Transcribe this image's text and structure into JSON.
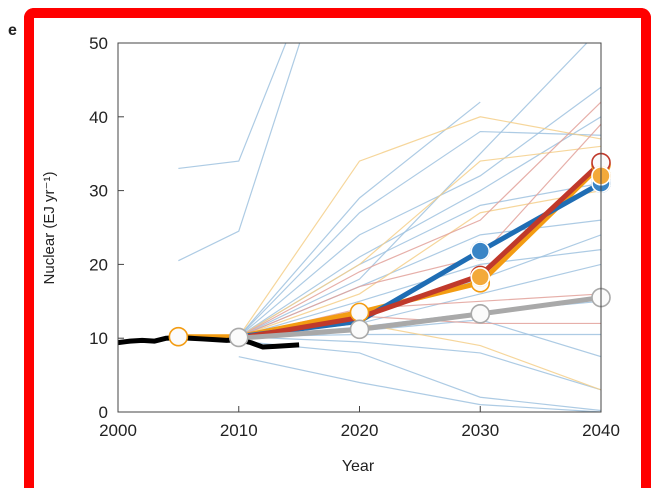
{
  "panel_label": "e",
  "colors": {
    "border": "#ff0000",
    "historical": "#000000",
    "series_blue": "#1f6db4",
    "series_orange": "#f39c12",
    "series_red": "#c0392b",
    "series_gray": "#a9a9a9",
    "thin_blue": "#9fc2df",
    "thin_orange": "#f5cf8a",
    "thin_red": "#e2a19a"
  },
  "chart_data": {
    "type": "line",
    "title": "",
    "xlabel": "Year",
    "ylabel": "Nuclear (EJ yr⁻¹)",
    "xlim": [
      2000,
      2040
    ],
    "ylim": [
      0,
      50
    ],
    "xticks": [
      2000,
      2010,
      2020,
      2030,
      2040
    ],
    "yticks": [
      0,
      10,
      20,
      30,
      40,
      50
    ],
    "grid": false,
    "historical": {
      "x": [
        2000,
        2001,
        2002,
        2003,
        2004,
        2005,
        2006,
        2007,
        2008,
        2009,
        2010,
        2011,
        2012,
        2013,
        2014,
        2015
      ],
      "values": [
        9.4,
        9.6,
        9.7,
        9.6,
        10.0,
        10.1,
        10.0,
        9.9,
        9.8,
        9.7,
        9.8,
        9.4,
        8.8,
        8.9,
        9.0,
        9.1
      ]
    },
    "series": [
      {
        "color_key": "series_orange",
        "x": [
          2005,
          2010,
          2020,
          2030,
          2040
        ],
        "values": [
          10.2,
          10.2,
          13.5,
          17.5,
          33.5
        ],
        "markers": [
          2005,
          2020,
          2030,
          2040
        ]
      },
      {
        "color_key": "series_blue",
        "x": [
          2010,
          2020,
          2030,
          2040
        ],
        "values": [
          10.2,
          12.3,
          21.8,
          31.0
        ],
        "markers": [
          2030,
          2040
        ]
      },
      {
        "color_key": "series_red",
        "x": [
          2010,
          2020,
          2030,
          2040
        ],
        "values": [
          10.0,
          12.8,
          18.5,
          33.8
        ],
        "markers": [
          2030,
          2040
        ]
      },
      {
        "color_key": "series_gray",
        "x": [
          2010,
          2020,
          2030,
          2040
        ],
        "values": [
          10.0,
          11.2,
          13.3,
          15.5
        ],
        "markers": [
          2020,
          2030,
          2040
        ]
      }
    ],
    "markers_extra": [
      {
        "x": 2010,
        "y": 10.1,
        "color_key": "series_gray"
      },
      {
        "x": 2040,
        "y": 32.0,
        "color_key": "series_orange"
      },
      {
        "x": 2030,
        "y": 18.3,
        "color_key": "series_orange"
      }
    ],
    "thin_lines": [
      {
        "color_key": "thin_blue",
        "x": [
          2005,
          2010,
          2020
        ],
        "values": [
          33,
          34,
          75
        ]
      },
      {
        "color_key": "thin_blue",
        "x": [
          2005,
          2010,
          2020
        ],
        "values": [
          20.5,
          24.5,
          75
        ]
      },
      {
        "color_key": "thin_blue",
        "x": [
          2010,
          2020,
          2030
        ],
        "values": [
          10.2,
          29,
          42
        ]
      },
      {
        "color_key": "thin_blue",
        "x": [
          2010,
          2020,
          2030,
          2040
        ],
        "values": [
          10.2,
          27,
          38,
          37.5
        ]
      },
      {
        "color_key": "thin_blue",
        "x": [
          2010,
          2020,
          2030,
          2040
        ],
        "values": [
          10.2,
          24,
          32,
          44
        ]
      },
      {
        "color_key": "thin_blue",
        "x": [
          2010,
          2020,
          2030,
          2040
        ],
        "values": [
          10.2,
          20,
          28,
          31
        ]
      },
      {
        "color_key": "thin_blue",
        "x": [
          2010,
          2020,
          2030,
          2040
        ],
        "values": [
          10.2,
          17,
          24,
          26
        ]
      },
      {
        "color_key": "thin_blue",
        "x": [
          2010,
          2020,
          2030,
          2040
        ],
        "values": [
          10.2,
          15,
          20,
          22
        ]
      },
      {
        "color_key": "thin_blue",
        "x": [
          2010,
          2020,
          2030,
          2040
        ],
        "values": [
          10.2,
          13,
          18,
          24
        ]
      },
      {
        "color_key": "thin_blue",
        "x": [
          2010,
          2020,
          2030,
          2040
        ],
        "values": [
          10.2,
          11,
          12.5,
          7.5
        ]
      },
      {
        "color_key": "thin_blue",
        "x": [
          2010,
          2020,
          2030,
          2040
        ],
        "values": [
          10.2,
          9.5,
          8,
          3
        ]
      },
      {
        "color_key": "thin_blue",
        "x": [
          2010,
          2020,
          2030,
          2040
        ],
        "values": [
          9.6,
          8,
          2,
          0.2
        ]
      },
      {
        "color_key": "thin_blue",
        "x": [
          2010,
          2020,
          2030,
          2040
        ],
        "values": [
          7.5,
          4,
          1,
          0
        ]
      },
      {
        "color_key": "thin_blue",
        "x": [
          2010,
          2020,
          2030,
          2040
        ],
        "values": [
          10.2,
          18,
          35,
          52
        ]
      },
      {
        "color_key": "thin_blue",
        "x": [
          2010,
          2020,
          2030,
          2040
        ],
        "values": [
          10.2,
          21,
          30,
          40
        ]
      },
      {
        "color_key": "thin_blue",
        "x": [
          2010,
          2020,
          2030,
          2040
        ],
        "values": [
          10.2,
          12,
          16,
          20
        ]
      },
      {
        "color_key": "thin_blue",
        "x": [
          2010,
          2020,
          2030,
          2040
        ],
        "values": [
          10.2,
          11.5,
          13.5,
          15
        ]
      },
      {
        "color_key": "thin_blue",
        "x": [
          2010,
          2020,
          2030,
          2040
        ],
        "values": [
          10.2,
          10.5,
          10.5,
          10.5
        ]
      },
      {
        "color_key": "thin_orange",
        "x": [
          2010,
          2020,
          2030,
          2040
        ],
        "values": [
          10.2,
          34,
          40,
          37
        ]
      },
      {
        "color_key": "thin_orange",
        "x": [
          2010,
          2020,
          2030,
          2040
        ],
        "values": [
          10.2,
          20,
          34,
          36
        ]
      },
      {
        "color_key": "thin_orange",
        "x": [
          2010,
          2020,
          2030,
          2040
        ],
        "values": [
          10.2,
          16,
          27,
          30
        ]
      },
      {
        "color_key": "thin_orange",
        "x": [
          2010,
          2020,
          2030,
          2040
        ],
        "values": [
          10.2,
          12,
          9,
          3
        ]
      },
      {
        "color_key": "thin_red",
        "x": [
          2010,
          2020,
          2030,
          2040
        ],
        "values": [
          10.2,
          19,
          26,
          42
        ]
      },
      {
        "color_key": "thin_red",
        "x": [
          2010,
          2020,
          2030,
          2040
        ],
        "values": [
          10.2,
          17,
          21,
          39
        ]
      },
      {
        "color_key": "thin_red",
        "x": [
          2010,
          2020,
          2030,
          2040
        ],
        "values": [
          10.2,
          14,
          15,
          16
        ]
      },
      {
        "color_key": "thin_red",
        "x": [
          2010,
          2020,
          2030,
          2040
        ],
        "values": [
          10.2,
          13,
          12,
          12
        ]
      }
    ]
  }
}
